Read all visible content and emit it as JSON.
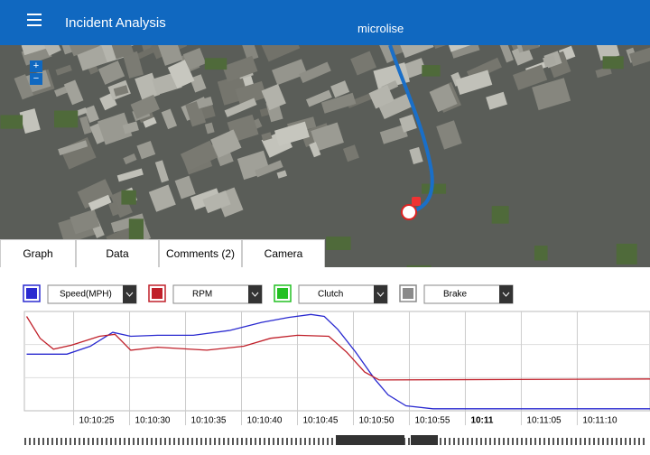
{
  "header": {
    "title": "Incident Analysis",
    "logo": "microlise"
  },
  "map": {
    "zoom_in": "+",
    "zoom_out": "−"
  },
  "tabs": [
    "Graph",
    "Data",
    "Comments (2)",
    "Camera"
  ],
  "chart_data": {
    "type": "line",
    "series": [
      {
        "name": "Speed(MPH)",
        "color": "#2a2ad0",
        "x": [
          20.8,
          24.4,
          26.5,
          28.5,
          30.1,
          32.5,
          35.7,
          39.0,
          41.8,
          44.2,
          46.2,
          47.4,
          48.6,
          50.2,
          51.9,
          53.1,
          54.7,
          57.1,
          76.5
        ],
        "values": [
          57,
          57,
          65,
          79,
          75,
          76,
          76,
          81,
          89,
          94,
          97,
          95,
          82,
          59,
          32,
          16,
          5,
          2,
          2
        ]
      },
      {
        "name": "RPM",
        "color": "#c0202a",
        "x": [
          20.8,
          22.0,
          23.2,
          24.8,
          27.3,
          28.7,
          30.1,
          32.5,
          36.9,
          40.2,
          42.6,
          45.0,
          47.8,
          49.4,
          51.0,
          52.3,
          76.5
        ],
        "values": [
          95,
          73,
          62,
          66,
          75,
          77,
          61,
          64,
          61,
          65,
          73,
          76,
          75,
          59,
          39,
          31,
          32
        ]
      },
      {
        "name": "Clutch",
        "color": "#22c022",
        "x": [],
        "values": []
      },
      {
        "name": "Brake",
        "color": "#8a8a8a",
        "x": [],
        "values": []
      }
    ],
    "xlim": [
      20.6,
      76.5
    ],
    "ylim": [
      0,
      100
    ],
    "xticks": [
      {
        "value": 25,
        "label": "10:10:25"
      },
      {
        "value": 30,
        "label": "10:10:30"
      },
      {
        "value": 35,
        "label": "10:10:35"
      },
      {
        "value": 40,
        "label": "10:10:40"
      },
      {
        "value": 45,
        "label": "10:10:45"
      },
      {
        "value": 50,
        "label": "10:10:50"
      },
      {
        "value": 55,
        "label": "10:10:55"
      },
      {
        "value": 60,
        "label": "10:11",
        "bold": true
      },
      {
        "value": 65,
        "label": "10:11:05"
      },
      {
        "value": 70,
        "label": "10:11:10"
      }
    ],
    "grid": true
  }
}
